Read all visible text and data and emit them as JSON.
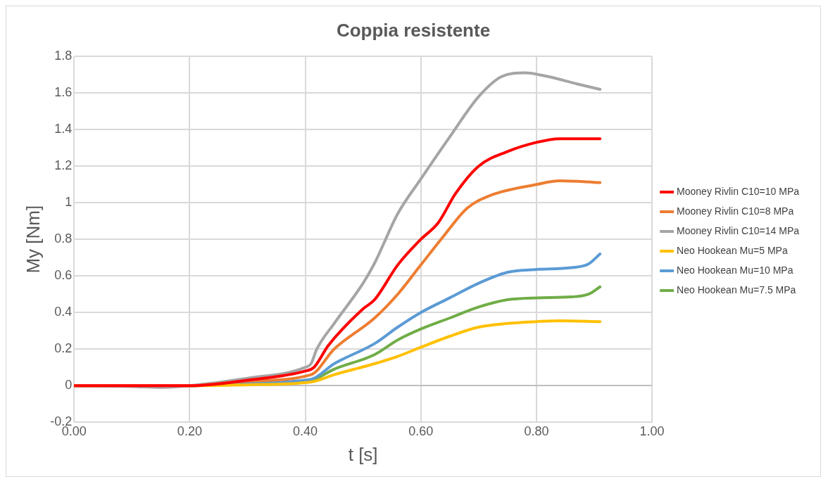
{
  "chart_data": {
    "type": "line",
    "title": "Coppia resistente",
    "xlabel": "t [s]",
    "ylabel": "My [Nm]",
    "xlim": [
      0,
      1
    ],
    "xticks": [
      {
        "value": 0,
        "label": "0.00"
      },
      {
        "value": 0.2,
        "label": "0.20"
      },
      {
        "value": 0.4,
        "label": "0.40"
      },
      {
        "value": 0.6,
        "label": "0.60"
      },
      {
        "value": 0.8,
        "label": "0.80"
      },
      {
        "value": 1,
        "label": "1.00"
      }
    ],
    "ylim": [
      -0.2,
      1.8
    ],
    "yticks": [
      -0.2,
      0,
      0.2,
      0.4,
      0.6,
      0.8,
      1,
      1.2,
      1.4,
      1.6,
      1.8
    ],
    "grid": true,
    "legend": "right",
    "marker": "none",
    "line_style": "solid",
    "series": [
      {
        "name": "Mooney Rivlin C10=10 MPa",
        "color": "#ff0000",
        "x": [
          0,
          0.2,
          0.3,
          0.4,
          0.415,
          0.44,
          0.5,
          0.52,
          0.56,
          0.6,
          0.63,
          0.66,
          0.7,
          0.75,
          0.8,
          0.84,
          0.91
        ],
        "values": [
          0,
          0,
          0.03,
          0.08,
          0.1,
          0.22,
          0.42,
          0.47,
          0.66,
          0.8,
          0.89,
          1.05,
          1.2,
          1.28,
          1.33,
          1.35,
          1.35
        ]
      },
      {
        "name": "Mooney Rivlin C10=8 MPa",
        "color": "#ed7d31",
        "x": [
          0,
          0.2,
          0.3,
          0.41,
          0.45,
          0.52,
          0.56,
          0.6,
          0.64,
          0.68,
          0.72,
          0.8,
          0.84,
          0.91
        ],
        "values": [
          0,
          0,
          0.025,
          0.06,
          0.2,
          0.37,
          0.5,
          0.66,
          0.82,
          0.97,
          1.04,
          1.1,
          1.12,
          1.11
        ]
      },
      {
        "name": "Mooney Rivlin C10=14 MPa",
        "color": "#a5a5a5",
        "x": [
          0,
          0.1,
          0.15,
          0.2,
          0.3,
          0.4,
          0.41,
          0.42,
          0.45,
          0.5,
          0.52,
          0.56,
          0.6,
          0.65,
          0.7,
          0.74,
          0.78,
          0.82,
          0.87,
          0.91
        ],
        "values": [
          0,
          -0.005,
          -0.01,
          0,
          0.04,
          0.1,
          0.12,
          0.2,
          0.34,
          0.56,
          0.67,
          0.94,
          1.13,
          1.36,
          1.58,
          1.69,
          1.71,
          1.69,
          1.65,
          1.62
        ]
      },
      {
        "name": "Neo Hookean Mu=5 MPa",
        "color": "#ffc000",
        "x": [
          0,
          0.2,
          0.3,
          0.41,
          0.45,
          0.52,
          0.56,
          0.6,
          0.65,
          0.7,
          0.75,
          0.8,
          0.84,
          0.91
        ],
        "values": [
          0,
          0,
          0.005,
          0.02,
          0.06,
          0.12,
          0.16,
          0.21,
          0.27,
          0.32,
          0.34,
          0.35,
          0.355,
          0.35
        ]
      },
      {
        "name": "Neo Hookean Mu=10 MPa",
        "color": "#5b9bd5",
        "x": [
          0,
          0.2,
          0.3,
          0.41,
          0.45,
          0.52,
          0.56,
          0.6,
          0.65,
          0.7,
          0.75,
          0.8,
          0.86,
          0.89,
          0.91
        ],
        "values": [
          0,
          0,
          0.015,
          0.035,
          0.12,
          0.23,
          0.32,
          0.4,
          0.48,
          0.56,
          0.62,
          0.635,
          0.645,
          0.665,
          0.72
        ]
      },
      {
        "name": "Neo Hookean Mu=7.5 MPa",
        "color": "#70ad47",
        "x": [
          0,
          0.2,
          0.3,
          0.41,
          0.45,
          0.52,
          0.56,
          0.6,
          0.65,
          0.7,
          0.75,
          0.8,
          0.86,
          0.89,
          0.91
        ],
        "values": [
          0,
          0,
          0.01,
          0.03,
          0.09,
          0.17,
          0.25,
          0.31,
          0.37,
          0.43,
          0.47,
          0.48,
          0.485,
          0.5,
          0.54
        ]
      }
    ]
  }
}
